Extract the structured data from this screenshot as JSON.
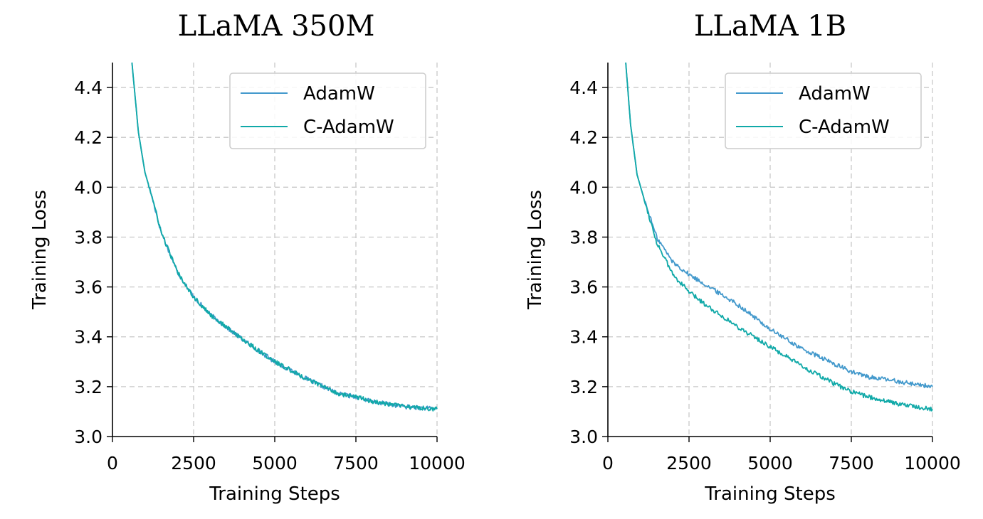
{
  "chart_data": [
    {
      "type": "line",
      "title": "LLaMA 350M",
      "xlabel": "Training Steps",
      "ylabel": "Training Loss",
      "xlim": [
        0,
        10000
      ],
      "ylim": [
        3.0,
        4.5
      ],
      "xticks": [
        "0",
        "2500",
        "5000",
        "7500",
        "10000"
      ],
      "yticks": [
        "3.0",
        "3.2",
        "3.4",
        "3.6",
        "3.8",
        "4.0",
        "4.2",
        "4.4"
      ],
      "grid": true,
      "legend_position": "top-right",
      "x": [
        600,
        800,
        1000,
        1200,
        1500,
        2000,
        2500,
        3000,
        4000,
        5000,
        6000,
        7000,
        7500,
        8000,
        9000,
        10000
      ],
      "series": [
        {
          "name": "AdamW",
          "color": "#4399cc",
          "values": [
            4.5,
            4.22,
            4.06,
            3.97,
            3.82,
            3.66,
            3.56,
            3.49,
            3.39,
            3.3,
            3.23,
            3.17,
            3.16,
            3.14,
            3.12,
            3.11
          ]
        },
        {
          "name": "C-AdamW",
          "color": "#10a9a8",
          "values": [
            4.5,
            4.22,
            4.06,
            3.97,
            3.82,
            3.66,
            3.56,
            3.49,
            3.39,
            3.3,
            3.23,
            3.17,
            3.16,
            3.14,
            3.12,
            3.11
          ]
        }
      ]
    },
    {
      "type": "line",
      "title": "LLaMA 1B",
      "xlabel": "Training Steps",
      "ylabel": "Training Loss",
      "xlim": [
        0,
        10000
      ],
      "ylim": [
        3.0,
        4.5
      ],
      "xticks": [
        "0",
        "2500",
        "5000",
        "7500",
        "10000"
      ],
      "yticks": [
        "3.0",
        "3.2",
        "3.4",
        "3.6",
        "3.8",
        "4.0",
        "4.2",
        "4.4"
      ],
      "grid": true,
      "legend_position": "top-right",
      "x": [
        550,
        700,
        900,
        1100,
        1500,
        2000,
        2500,
        3000,
        4000,
        5000,
        6000,
        7000,
        7500,
        8000,
        9000,
        10000
      ],
      "series": [
        {
          "name": "AdamW",
          "color": "#4399cc",
          "values": [
            4.5,
            4.25,
            4.05,
            3.96,
            3.8,
            3.7,
            3.65,
            3.61,
            3.53,
            3.43,
            3.35,
            3.29,
            3.26,
            3.24,
            3.22,
            3.2
          ]
        },
        {
          "name": "C-AdamW",
          "color": "#10a9a8",
          "values": [
            4.5,
            4.25,
            4.05,
            3.96,
            3.78,
            3.65,
            3.58,
            3.53,
            3.44,
            3.36,
            3.28,
            3.21,
            3.18,
            3.16,
            3.13,
            3.11
          ]
        }
      ]
    }
  ]
}
